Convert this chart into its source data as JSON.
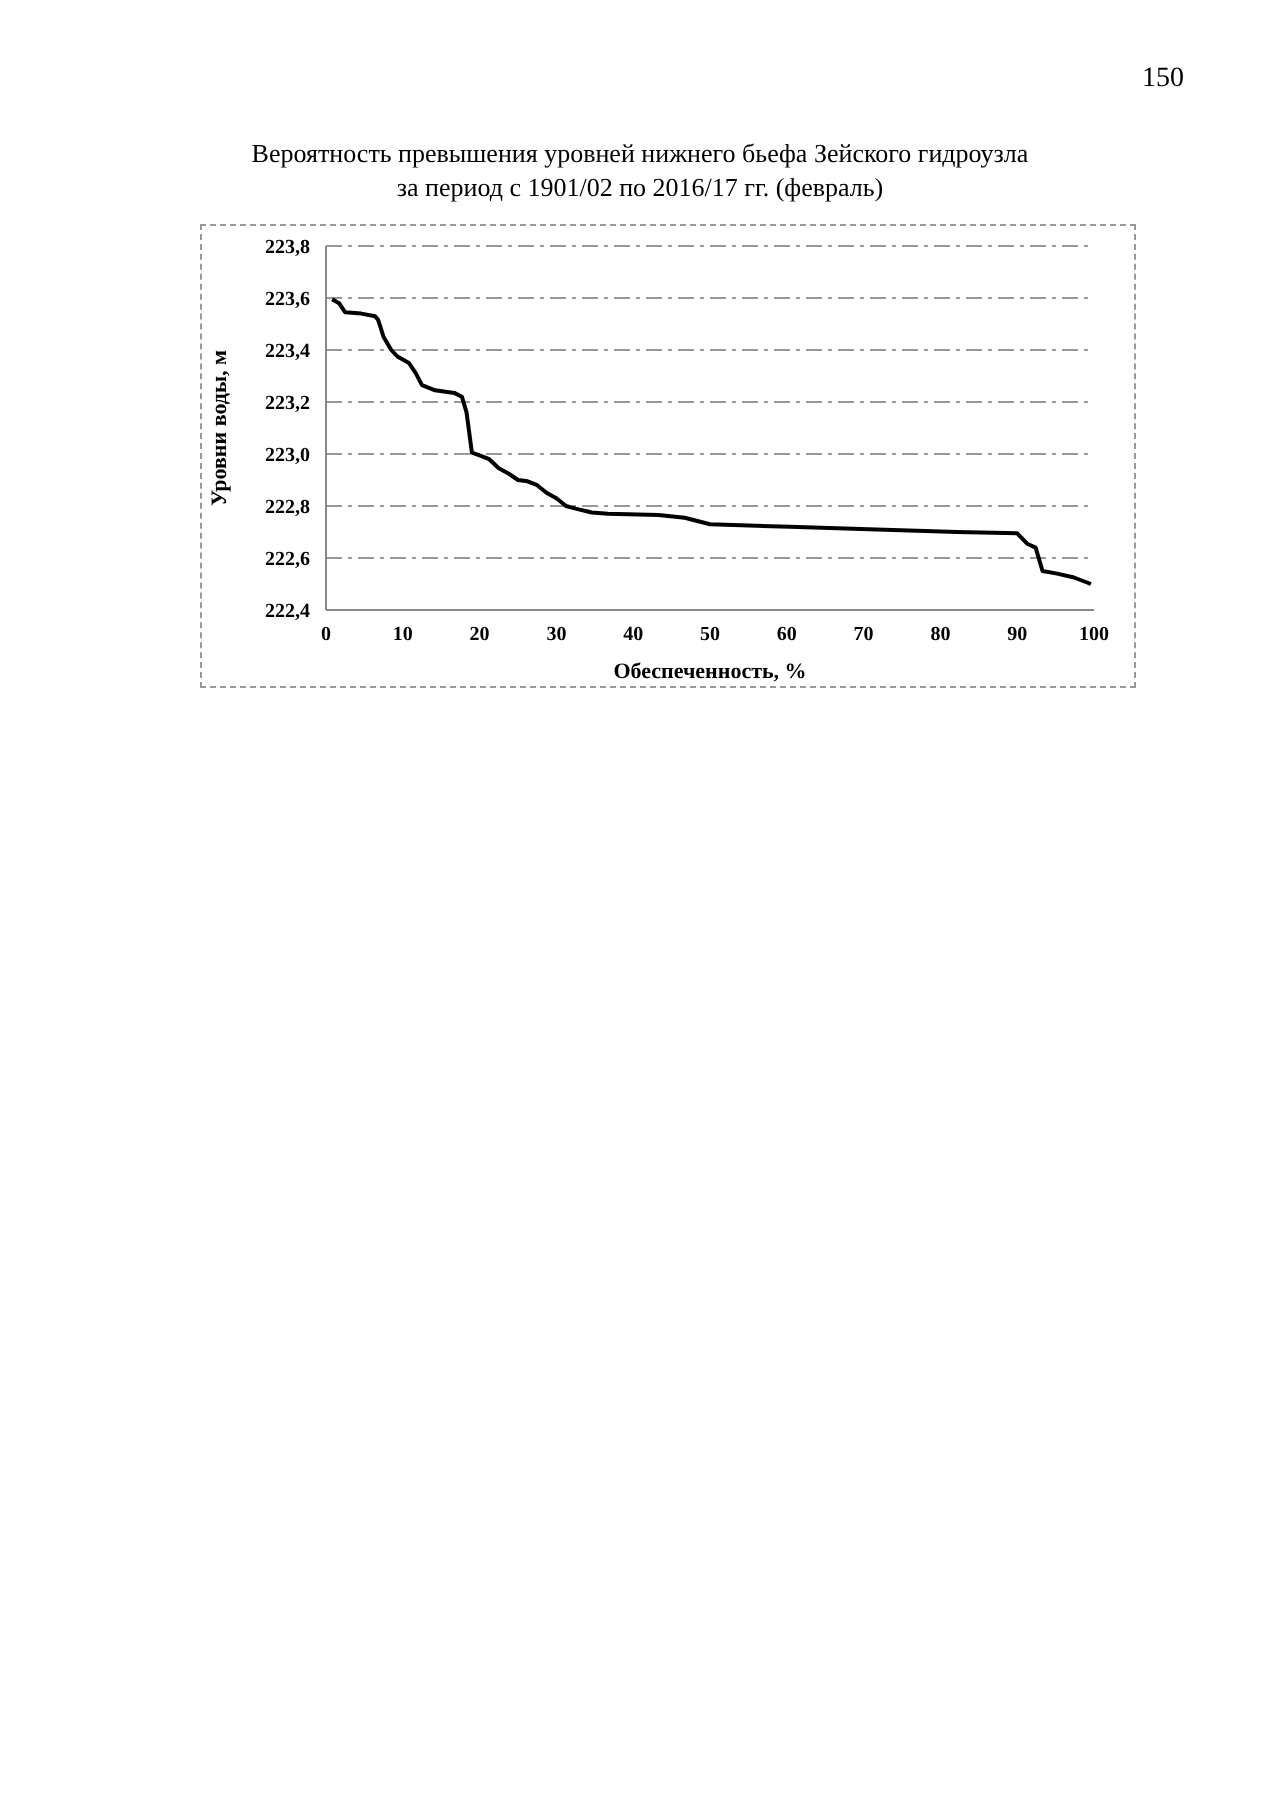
{
  "chart_data": {
    "type": "line",
    "title": "Вероятность превышения уровней нижнего бьефа Зейского гидроузла\nза период с 1901/02 по 2016/17 гг. (февраль)",
    "xlabel": "Обеспеченность, %",
    "ylabel": "Уровни воды, м",
    "annotations": [
      "150"
    ],
    "x": [
      0.8,
      1.7,
      2.5,
      4.6,
      6.4,
      6.8,
      7.5,
      8.5,
      9.3,
      10.8,
      11.7,
      12.5,
      14.2,
      16.7,
      17.7,
      18.3,
      19,
      20,
      21.25,
      22.5,
      23.75,
      25,
      26.25,
      27.5,
      28.75,
      30,
      31.25,
      32.5,
      34.6,
      36.7,
      43.3,
      46.7,
      50,
      60.4,
      71.7,
      82.2,
      90,
      91.3,
      92.4,
      93.3,
      95.2,
      97.4,
      99.6
    ],
    "series": [
      {
        "color": "#000000",
        "values": [
          223.595,
          223.58,
          223.545,
          223.54,
          223.53,
          223.515,
          223.45,
          223.4,
          223.375,
          223.35,
          223.31,
          223.265,
          223.245,
          223.235,
          223.22,
          223.16,
          223.005,
          222.995,
          222.98,
          222.945,
          222.925,
          222.9,
          222.895,
          222.88,
          222.85,
          222.83,
          222.8,
          222.79,
          222.775,
          222.77,
          222.765,
          222.755,
          222.73,
          222.72,
          222.71,
          222.7,
          222.695,
          222.655,
          222.64,
          222.55,
          222.54,
          222.525,
          222.5
        ]
      }
    ],
    "xlim": [
      0,
      100
    ],
    "xticks": [
      0,
      10,
      20,
      30,
      40,
      50,
      60,
      70,
      80,
      90,
      100
    ],
    "ylim": [
      222.4,
      223.8
    ],
    "yticks": [
      {
        "value": 222.4,
        "label": "222,4"
      },
      {
        "value": 222.6,
        "label": "222,6"
      },
      {
        "value": 222.8,
        "label": "222,8"
      },
      {
        "value": 223.0,
        "label": "223,0"
      },
      {
        "value": 223.2,
        "label": "223,2"
      },
      {
        "value": 223.4,
        "label": "223,4"
      },
      {
        "value": 223.6,
        "label": "223,6"
      },
      {
        "value": 223.8,
        "label": "223,8"
      }
    ],
    "grid": "y",
    "legend": false,
    "marker": "none",
    "line_style": "solid"
  }
}
